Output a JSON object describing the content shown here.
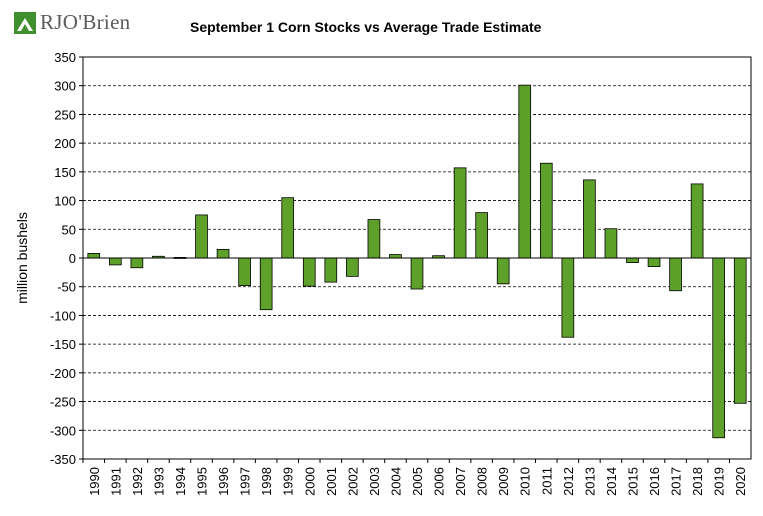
{
  "logo": {
    "text": "RJO'Brien",
    "icon": "rjobrien-logo-icon",
    "colors": {
      "green": "#3f8f2f",
      "gray": "#5a5a5a"
    }
  },
  "chart_data": {
    "type": "bar",
    "title": "September 1 Corn Stocks vs Average Trade Estimate",
    "xlabel": "",
    "ylabel": "million bushels",
    "ylim": [
      -350,
      350
    ],
    "yticks": [
      350,
      300,
      250,
      200,
      150,
      100,
      50,
      0,
      -50,
      -100,
      -150,
      -200,
      -250,
      -300,
      -350
    ],
    "grid": "horizontal dashed",
    "legend": "none",
    "bar_color": "#5ea12a",
    "categories": [
      "1990",
      "1991",
      "1992",
      "1993",
      "1994",
      "1995",
      "1996",
      "1997",
      "1998",
      "1999",
      "2000",
      "2001",
      "2002",
      "2003",
      "2004",
      "2005",
      "2006",
      "2007",
      "2008",
      "2009",
      "2010",
      "2011",
      "2012",
      "2013",
      "2014",
      "2015",
      "2016",
      "2017",
      "2018",
      "2019",
      "2020"
    ],
    "values": [
      8,
      -12,
      -17,
      3,
      1,
      75,
      15,
      -48,
      -90,
      105,
      -49,
      -42,
      -32,
      67,
      6,
      -54,
      4,
      157,
      79,
      -45,
      301,
      165,
      -138,
      136,
      51,
      -8,
      -15,
      -57,
      129,
      -313,
      -253
    ]
  }
}
